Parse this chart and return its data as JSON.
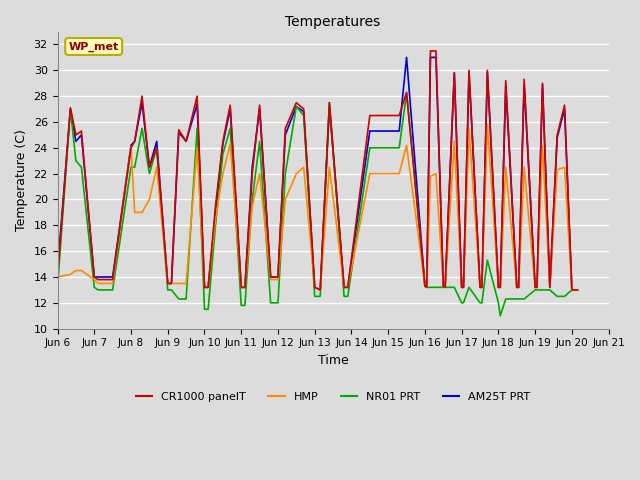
{
  "title": "Temperatures",
  "xlabel": "Time",
  "ylabel": "Temperature (C)",
  "ylim": [
    10,
    33
  ],
  "background_color": "#dcdcdc",
  "grid_color": "#ffffff",
  "annotation_text": "WP_met",
  "annotation_bg": "#ffffbb",
  "annotation_border": "#bbaa00",
  "annotation_text_color": "#880000",
  "tick_labels": [
    "Jun 6",
    "Jun 7",
    "Jun 8",
    "Jun 9",
    "Jun 10",
    "Jun 11",
    "Jun 12",
    "Jun 13",
    "Jun 14",
    "Jun 15",
    "Jun 16",
    "Jun 17",
    "Jun 18",
    "Jun 19",
    "Jun 20",
    "Jun 21"
  ],
  "yticks": [
    10,
    12,
    14,
    16,
    18,
    20,
    22,
    24,
    26,
    28,
    30,
    32
  ],
  "series": {
    "CR1000_panelT": {
      "color": "#cc0000",
      "label": "CR1000 panelT",
      "data": [
        [
          0.0,
          14.0
        ],
        [
          0.35,
          27.1
        ],
        [
          0.5,
          25.0
        ],
        [
          0.65,
          25.3
        ],
        [
          1.0,
          14.0
        ],
        [
          1.1,
          13.8
        ],
        [
          1.5,
          13.8
        ],
        [
          2.0,
          24.0
        ],
        [
          2.1,
          24.5
        ],
        [
          2.3,
          28.0
        ],
        [
          2.5,
          22.5
        ],
        [
          2.7,
          24.0
        ],
        [
          3.0,
          13.5
        ],
        [
          3.1,
          13.5
        ],
        [
          3.3,
          25.4
        ],
        [
          3.5,
          24.5
        ],
        [
          3.8,
          28.0
        ],
        [
          4.0,
          13.2
        ],
        [
          4.1,
          13.2
        ],
        [
          4.3,
          19.5
        ],
        [
          4.5,
          24.5
        ],
        [
          4.7,
          27.3
        ],
        [
          5.0,
          13.2
        ],
        [
          5.1,
          13.2
        ],
        [
          5.3,
          22.0
        ],
        [
          5.5,
          27.3
        ],
        [
          5.8,
          14.0
        ],
        [
          6.0,
          14.0
        ],
        [
          6.2,
          25.5
        ],
        [
          6.5,
          27.5
        ],
        [
          6.7,
          27.0
        ],
        [
          7.0,
          13.2
        ],
        [
          7.15,
          13.0
        ],
        [
          7.4,
          27.5
        ],
        [
          7.8,
          13.2
        ],
        [
          7.9,
          13.2
        ],
        [
          8.5,
          26.5
        ],
        [
          8.8,
          26.5
        ],
        [
          9.3,
          26.5
        ],
        [
          9.5,
          28.3
        ],
        [
          10.0,
          13.3
        ],
        [
          10.05,
          13.2
        ],
        [
          10.15,
          31.5
        ],
        [
          10.3,
          31.5
        ],
        [
          10.5,
          13.3
        ],
        [
          10.55,
          13.2
        ],
        [
          10.8,
          29.8
        ],
        [
          11.0,
          13.2
        ],
        [
          11.05,
          13.2
        ],
        [
          11.2,
          30.0
        ],
        [
          11.5,
          13.2
        ],
        [
          11.55,
          13.2
        ],
        [
          11.7,
          30.0
        ],
        [
          12.0,
          13.2
        ],
        [
          12.05,
          13.2
        ],
        [
          12.2,
          29.2
        ],
        [
          12.5,
          13.2
        ],
        [
          12.55,
          13.2
        ],
        [
          12.7,
          29.3
        ],
        [
          13.0,
          13.2
        ],
        [
          13.05,
          13.2
        ],
        [
          13.2,
          29.0
        ],
        [
          13.4,
          13.2
        ],
        [
          13.6,
          25.0
        ],
        [
          13.8,
          27.3
        ],
        [
          14.0,
          13.0
        ],
        [
          14.15,
          13.0
        ]
      ]
    },
    "HMP": {
      "color": "#ff8c00",
      "label": "HMP",
      "data": [
        [
          0.0,
          14.0
        ],
        [
          0.35,
          14.2
        ],
        [
          0.5,
          14.5
        ],
        [
          0.65,
          14.5
        ],
        [
          1.0,
          13.8
        ],
        [
          1.1,
          13.5
        ],
        [
          1.5,
          13.5
        ],
        [
          2.0,
          24.1
        ],
        [
          2.1,
          19.0
        ],
        [
          2.3,
          19.0
        ],
        [
          2.5,
          20.0
        ],
        [
          2.7,
          22.5
        ],
        [
          3.0,
          13.5
        ],
        [
          3.1,
          13.5
        ],
        [
          3.3,
          13.5
        ],
        [
          3.5,
          13.5
        ],
        [
          3.8,
          24.0
        ],
        [
          4.0,
          13.2
        ],
        [
          4.1,
          13.2
        ],
        [
          4.3,
          18.5
        ],
        [
          4.5,
          22.0
        ],
        [
          4.7,
          24.3
        ],
        [
          5.0,
          13.2
        ],
        [
          5.1,
          13.2
        ],
        [
          5.3,
          19.5
        ],
        [
          5.5,
          22.0
        ],
        [
          5.8,
          13.8
        ],
        [
          6.0,
          13.8
        ],
        [
          6.2,
          20.0
        ],
        [
          6.5,
          22.0
        ],
        [
          6.7,
          22.5
        ],
        [
          7.0,
          13.2
        ],
        [
          7.15,
          13.0
        ],
        [
          7.4,
          22.5
        ],
        [
          7.8,
          13.2
        ],
        [
          7.9,
          13.2
        ],
        [
          8.5,
          22.0
        ],
        [
          8.8,
          22.0
        ],
        [
          9.3,
          22.0
        ],
        [
          9.5,
          24.2
        ],
        [
          10.0,
          13.3
        ],
        [
          10.05,
          13.2
        ],
        [
          10.15,
          21.8
        ],
        [
          10.3,
          22.0
        ],
        [
          10.5,
          13.3
        ],
        [
          10.55,
          13.2
        ],
        [
          10.8,
          24.5
        ],
        [
          11.0,
          13.2
        ],
        [
          11.05,
          13.2
        ],
        [
          11.2,
          25.5
        ],
        [
          11.5,
          13.2
        ],
        [
          11.55,
          13.2
        ],
        [
          11.7,
          25.8
        ],
        [
          12.0,
          13.2
        ],
        [
          12.05,
          13.2
        ],
        [
          12.2,
          22.5
        ],
        [
          12.5,
          13.2
        ],
        [
          12.55,
          13.2
        ],
        [
          12.7,
          22.5
        ],
        [
          13.0,
          13.2
        ],
        [
          13.05,
          13.2
        ],
        [
          13.2,
          24.2
        ],
        [
          13.4,
          13.2
        ],
        [
          13.6,
          22.3
        ],
        [
          13.8,
          22.5
        ],
        [
          14.0,
          13.0
        ],
        [
          14.15,
          13.0
        ]
      ]
    },
    "NR01_PRT": {
      "color": "#00aa00",
      "label": "NR01 PRT",
      "data": [
        [
          0.0,
          13.2
        ],
        [
          0.35,
          27.0
        ],
        [
          0.5,
          23.0
        ],
        [
          0.65,
          22.5
        ],
        [
          1.0,
          13.2
        ],
        [
          1.1,
          13.0
        ],
        [
          1.5,
          13.0
        ],
        [
          2.0,
          22.5
        ],
        [
          2.1,
          22.5
        ],
        [
          2.3,
          25.5
        ],
        [
          2.5,
          22.0
        ],
        [
          2.7,
          24.0
        ],
        [
          3.0,
          13.0
        ],
        [
          3.1,
          13.0
        ],
        [
          3.3,
          12.3
        ],
        [
          3.5,
          12.3
        ],
        [
          3.8,
          25.5
        ],
        [
          4.0,
          11.5
        ],
        [
          4.1,
          11.5
        ],
        [
          4.3,
          18.0
        ],
        [
          4.5,
          23.5
        ],
        [
          4.7,
          25.5
        ],
        [
          5.0,
          11.8
        ],
        [
          5.1,
          11.8
        ],
        [
          5.3,
          20.0
        ],
        [
          5.5,
          24.5
        ],
        [
          5.8,
          12.0
        ],
        [
          6.0,
          12.0
        ],
        [
          6.2,
          22.0
        ],
        [
          6.5,
          27.2
        ],
        [
          6.7,
          26.5
        ],
        [
          7.0,
          12.5
        ],
        [
          7.15,
          12.5
        ],
        [
          7.4,
          27.5
        ],
        [
          7.8,
          12.5
        ],
        [
          7.9,
          12.5
        ],
        [
          8.5,
          24.0
        ],
        [
          8.8,
          24.0
        ],
        [
          9.3,
          24.0
        ],
        [
          9.5,
          28.2
        ],
        [
          10.0,
          13.3
        ],
        [
          10.05,
          13.2
        ],
        [
          10.15,
          13.2
        ],
        [
          10.3,
          13.2
        ],
        [
          10.5,
          13.2
        ],
        [
          10.55,
          13.2
        ],
        [
          10.8,
          13.2
        ],
        [
          11.0,
          12.0
        ],
        [
          11.05,
          12.0
        ],
        [
          11.2,
          13.2
        ],
        [
          11.5,
          12.0
        ],
        [
          11.55,
          12.0
        ],
        [
          11.7,
          15.3
        ],
        [
          12.0,
          12.0
        ],
        [
          12.05,
          11.0
        ],
        [
          12.2,
          12.3
        ],
        [
          12.5,
          12.3
        ],
        [
          12.55,
          12.3
        ],
        [
          12.7,
          12.3
        ],
        [
          13.0,
          13.0
        ],
        [
          13.05,
          13.0
        ],
        [
          13.2,
          13.0
        ],
        [
          13.4,
          13.0
        ],
        [
          13.6,
          12.5
        ],
        [
          13.8,
          12.5
        ],
        [
          14.0,
          13.0
        ],
        [
          14.15,
          13.0
        ]
      ]
    },
    "AM25T_PRT": {
      "color": "#0000cc",
      "label": "AM25T PRT",
      "data": [
        [
          0.0,
          14.5
        ],
        [
          0.35,
          27.0
        ],
        [
          0.5,
          24.5
        ],
        [
          0.65,
          25.0
        ],
        [
          1.0,
          14.0
        ],
        [
          1.1,
          14.0
        ],
        [
          1.5,
          14.0
        ],
        [
          2.0,
          24.2
        ],
        [
          2.1,
          24.5
        ],
        [
          2.3,
          27.5
        ],
        [
          2.5,
          22.5
        ],
        [
          2.7,
          24.5
        ],
        [
          3.0,
          13.5
        ],
        [
          3.1,
          13.5
        ],
        [
          3.3,
          25.2
        ],
        [
          3.5,
          24.5
        ],
        [
          3.8,
          27.4
        ],
        [
          4.0,
          13.2
        ],
        [
          4.1,
          13.2
        ],
        [
          4.3,
          19.0
        ],
        [
          4.5,
          24.3
        ],
        [
          4.7,
          27.0
        ],
        [
          5.0,
          13.2
        ],
        [
          5.1,
          13.2
        ],
        [
          5.3,
          22.5
        ],
        [
          5.5,
          27.0
        ],
        [
          5.8,
          14.0
        ],
        [
          6.0,
          14.0
        ],
        [
          6.2,
          25.0
        ],
        [
          6.5,
          27.2
        ],
        [
          6.7,
          26.8
        ],
        [
          7.0,
          13.2
        ],
        [
          7.15,
          13.0
        ],
        [
          7.4,
          27.2
        ],
        [
          7.8,
          13.2
        ],
        [
          7.9,
          13.2
        ],
        [
          8.5,
          25.3
        ],
        [
          8.8,
          25.3
        ],
        [
          9.3,
          25.3
        ],
        [
          9.5,
          31.0
        ],
        [
          10.0,
          13.3
        ],
        [
          10.05,
          13.2
        ],
        [
          10.15,
          31.0
        ],
        [
          10.3,
          31.0
        ],
        [
          10.5,
          13.3
        ],
        [
          10.55,
          13.2
        ],
        [
          10.8,
          29.8
        ],
        [
          11.0,
          13.2
        ],
        [
          11.05,
          13.2
        ],
        [
          11.2,
          29.8
        ],
        [
          11.5,
          13.2
        ],
        [
          11.55,
          13.2
        ],
        [
          11.7,
          29.8
        ],
        [
          12.0,
          13.2
        ],
        [
          12.05,
          13.2
        ],
        [
          12.2,
          28.8
        ],
        [
          12.5,
          13.2
        ],
        [
          12.55,
          13.2
        ],
        [
          12.7,
          28.9
        ],
        [
          13.0,
          13.2
        ],
        [
          13.05,
          13.2
        ],
        [
          13.2,
          28.9
        ],
        [
          13.4,
          13.2
        ],
        [
          13.6,
          24.8
        ],
        [
          13.8,
          27.0
        ],
        [
          14.0,
          13.0
        ],
        [
          14.15,
          13.0
        ]
      ]
    }
  }
}
